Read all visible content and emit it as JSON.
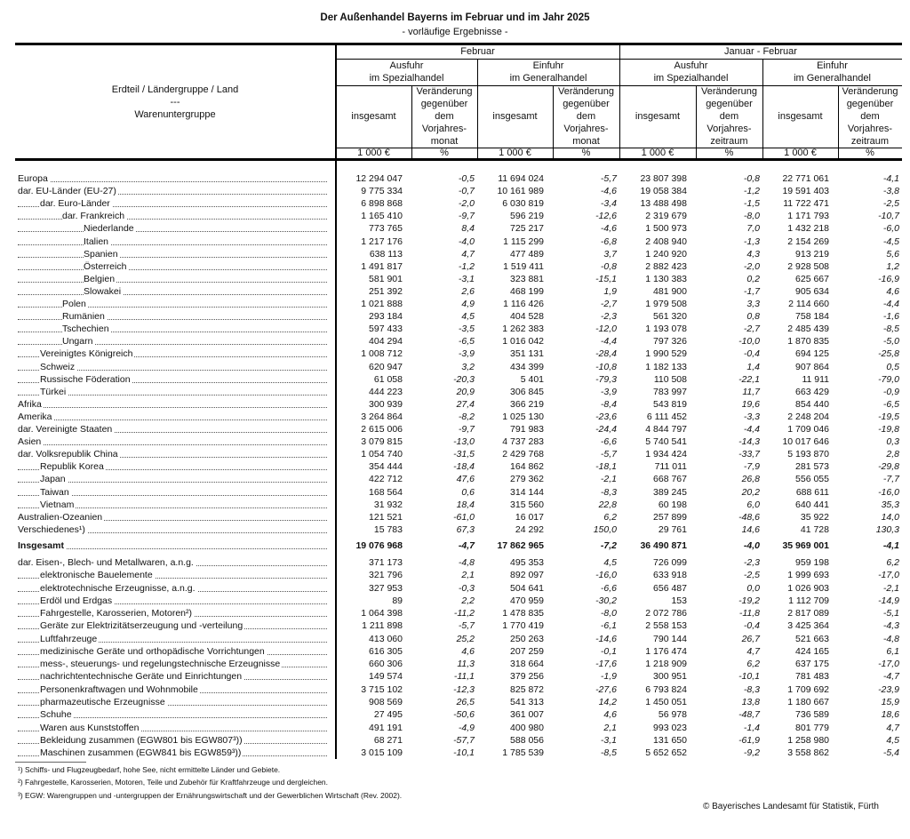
{
  "title": "Der Außenhandel Bayerns im Februar und im Jahr 2025",
  "subtitle": "- vorläufige Ergebnisse -",
  "header": {
    "row_label": [
      "Erdteil / Ländergruppe / Land",
      "---",
      "Warenuntergruppe"
    ],
    "period1": "Februar",
    "period2": "Januar - Februar",
    "ausfuhr": [
      "Ausfuhr",
      "im Spezialhandel"
    ],
    "einfuhr": [
      "Einfuhr",
      "im Generalhandel"
    ],
    "insgesamt": "insgesamt",
    "change_month": [
      "Veränderung",
      "gegenüber",
      "dem",
      "Vorjahres-",
      "monat"
    ],
    "change_period": [
      "Veränderung",
      "gegenüber",
      "dem",
      "Vorjahres-",
      "zeitraum"
    ],
    "unit_value": "1 000 €",
    "unit_pct": "%"
  },
  "regions": [
    {
      "label": "Europa",
      "level": 0,
      "values": [
        "12 294 047",
        "-0,5",
        "11 694 024",
        "-5,7",
        "23 807 398",
        "-0,8",
        "22 771 061",
        "-4,1"
      ]
    },
    {
      "label": "dar. EU-Länder (EU-27)",
      "level": 0,
      "values": [
        "9 775 334",
        "-0,7",
        "10 161 989",
        "-4,6",
        "19 058 384",
        "-1,2",
        "19 591 403",
        "-3,8"
      ]
    },
    {
      "label": "dar. Euro-Länder",
      "level": 1,
      "values": [
        "6 898 868",
        "-2,0",
        "6 030 819",
        "-3,4",
        "13 488 498",
        "-1,5",
        "11 722 471",
        "-2,5"
      ]
    },
    {
      "label": "dar. Frankreich",
      "level": 2,
      "values": [
        "1 165 410",
        "-9,7",
        "596 219",
        "-12,6",
        "2 319 679",
        "-8,0",
        "1 171 793",
        "-10,7"
      ]
    },
    {
      "label": "Niederlande",
      "level": 3,
      "values": [
        "773 765",
        "8,4",
        "725 217",
        "-4,6",
        "1 500 973",
        "7,0",
        "1 432 218",
        "-6,0"
      ]
    },
    {
      "label": "Italien",
      "level": 3,
      "values": [
        "1 217 176",
        "-4,0",
        "1 115 299",
        "-6,8",
        "2 408 940",
        "-1,3",
        "2 154 269",
        "-4,5"
      ]
    },
    {
      "label": "Spanien",
      "level": 3,
      "values": [
        "638 113",
        "4,7",
        "477 489",
        "3,7",
        "1 240 920",
        "4,3",
        "913 219",
        "5,6"
      ]
    },
    {
      "label": "Österreich",
      "level": 3,
      "values": [
        "1 491 817",
        "-1,2",
        "1 519 411",
        "-0,8",
        "2 882 423",
        "-2,0",
        "2 928 508",
        "1,2"
      ]
    },
    {
      "label": "Belgien",
      "level": 3,
      "values": [
        "581 901",
        "-3,1",
        "323 881",
        "-15,1",
        "1 130 383",
        "0,2",
        "625 667",
        "-16,9"
      ]
    },
    {
      "label": "Slowakei",
      "level": 3,
      "values": [
        "251 392",
        "2,6",
        "468 199",
        "1,9",
        "481 900",
        "-1,7",
        "905 634",
        "4,6"
      ]
    },
    {
      "label": "Polen",
      "level": 2,
      "values": [
        "1 021 888",
        "4,9",
        "1 116 426",
        "-2,7",
        "1 979 508",
        "3,3",
        "2 114 660",
        "-4,4"
      ]
    },
    {
      "label": "Rumänien",
      "level": 2,
      "values": [
        "293 184",
        "4,5",
        "404 528",
        "-2,3",
        "561 320",
        "0,8",
        "758 184",
        "-1,6"
      ]
    },
    {
      "label": "Tschechien",
      "level": 2,
      "values": [
        "597 433",
        "-3,5",
        "1 262 383",
        "-12,0",
        "1 193 078",
        "-2,7",
        "2 485 439",
        "-8,5"
      ]
    },
    {
      "label": "Ungarn",
      "level": 2,
      "values": [
        "404 294",
        "-6,5",
        "1 016 042",
        "-4,4",
        "797 326",
        "-10,0",
        "1 870 835",
        "-5,0"
      ]
    },
    {
      "label": "Vereinigtes Königreich",
      "level": 1,
      "values": [
        "1 008 712",
        "-3,9",
        "351 131",
        "-28,4",
        "1 990 529",
        "-0,4",
        "694 125",
        "-25,8"
      ]
    },
    {
      "label": "Schweiz",
      "level": 1,
      "values": [
        "620 947",
        "3,2",
        "434 399",
        "-10,8",
        "1 182 133",
        "1,4",
        "907 864",
        "0,5"
      ]
    },
    {
      "label": "Russische Föderation",
      "level": 1,
      "values": [
        "61 058",
        "-20,3",
        "5 401",
        "-79,3",
        "110 508",
        "-22,1",
        "11 911",
        "-79,0"
      ]
    },
    {
      "label": "Türkei",
      "level": 1,
      "values": [
        "444 223",
        "20,9",
        "306 845",
        "-3,9",
        "783 997",
        "11,7",
        "663 429",
        "-0,9"
      ]
    },
    {
      "label": "Afrika",
      "level": 0,
      "values": [
        "300 939",
        "27,4",
        "366 219",
        "-8,4",
        "543 819",
        "19,6",
        "854 440",
        "-6,5"
      ]
    },
    {
      "label": "Amerika",
      "level": 0,
      "values": [
        "3 264 864",
        "-8,2",
        "1 025 130",
        "-23,6",
        "6 111 452",
        "-3,3",
        "2 248 204",
        "-19,5"
      ]
    },
    {
      "label": "dar. Vereinigte Staaten",
      "level": 0,
      "values": [
        "2 615 006",
        "-9,7",
        "791 983",
        "-24,4",
        "4 844 797",
        "-4,4",
        "1 709 046",
        "-19,8"
      ]
    },
    {
      "label": "Asien",
      "level": 0,
      "values": [
        "3 079 815",
        "-13,0",
        "4 737 283",
        "-6,6",
        "5 740 541",
        "-14,3",
        "10 017 646",
        "0,3"
      ]
    },
    {
      "label": "dar. Volksrepublik China",
      "level": 0,
      "values": [
        "1 054 740",
        "-31,5",
        "2 429 768",
        "-5,7",
        "1 934 424",
        "-33,7",
        "5 193 870",
        "2,8"
      ]
    },
    {
      "label": "Republik Korea",
      "level": 1,
      "values": [
        "354 444",
        "-18,4",
        "164 862",
        "-18,1",
        "711 011",
        "-7,9",
        "281 573",
        "-29,8"
      ]
    },
    {
      "label": "Japan",
      "level": 1,
      "values": [
        "422 712",
        "47,6",
        "279 362",
        "-2,1",
        "668 767",
        "26,8",
        "556 055",
        "-7,7"
      ]
    },
    {
      "label": "Taiwan",
      "level": 1,
      "values": [
        "168 564",
        "0,6",
        "314 144",
        "-8,3",
        "389 245",
        "20,2",
        "688 611",
        "-16,0"
      ]
    },
    {
      "label": "Vietnam",
      "level": 1,
      "values": [
        "31 932",
        "18,4",
        "315 560",
        "22,8",
        "60 198",
        "6,0",
        "640 441",
        "35,3"
      ]
    },
    {
      "label": "Australien-Ozeanien",
      "level": 0,
      "values": [
        "121 521",
        "-61,0",
        "16 017",
        "6,2",
        "257 899",
        "-48,6",
        "35 922",
        "14,0"
      ]
    },
    {
      "label": "Verschiedenes¹)",
      "level": 0,
      "values": [
        "15 783",
        "67,3",
        "24 292",
        "150,0",
        "29 761",
        "14,6",
        "41 728",
        "130,3"
      ]
    }
  ],
  "total": {
    "label": "Insgesamt",
    "values": [
      "19 076 968",
      "-4,7",
      "17 862 965",
      "-7,2",
      "36 490 871",
      "-4,0",
      "35 969 001",
      "-4,1"
    ]
  },
  "goods": [
    {
      "label": "dar. Eisen-, Blech- und Metallwaren, a.n.g.",
      "level": 0,
      "values": [
        "371 173",
        "-4,8",
        "495 353",
        "4,5",
        "726 099",
        "-2,3",
        "959 198",
        "6,2"
      ]
    },
    {
      "label": "elektronische Bauelemente",
      "level": 1,
      "values": [
        "321 796",
        "2,1",
        "892 097",
        "-16,0",
        "633 918",
        "-2,5",
        "1 999 693",
        "-17,0"
      ]
    },
    {
      "label": "elektrotechnische Erzeugnisse, a.n.g.",
      "level": 1,
      "values": [
        "327 953",
        "-0,3",
        "504 641",
        "-6,6",
        "656 487",
        "0,0",
        "1 026 903",
        "-2,1"
      ]
    },
    {
      "label": "Erdöl und Erdgas",
      "level": 1,
      "values": [
        "89",
        "2,2",
        "470 959",
        "-30,2",
        "153",
        "-19,2",
        "1 112 709",
        "-14,9"
      ]
    },
    {
      "label": "Fahrgestelle, Karosserien, Motoren²)",
      "level": 1,
      "values": [
        "1 064 398",
        "-11,2",
        "1 478 835",
        "-8,0",
        "2 072 786",
        "-11,8",
        "2 817 089",
        "-5,1"
      ]
    },
    {
      "label": "Geräte zur Elektrizitätserzeugung und -verteilung",
      "level": 1,
      "values": [
        "1 211 898",
        "-5,7",
        "1 770 419",
        "-6,1",
        "2 558 153",
        "-0,4",
        "3 425 364",
        "-4,3"
      ]
    },
    {
      "label": "Luftfahrzeuge",
      "level": 1,
      "values": [
        "413 060",
        "25,2",
        "250 263",
        "-14,6",
        "790 144",
        "26,7",
        "521 663",
        "-4,8"
      ]
    },
    {
      "label": "medizinische Geräte und orthopädische Vorrichtungen",
      "level": 1,
      "values": [
        "616 305",
        "4,6",
        "207 259",
        "-0,1",
        "1 176 474",
        "4,7",
        "424 165",
        "6,1"
      ]
    },
    {
      "label": "mess-, steuerungs- und regelungstechnische Erzeugnisse",
      "level": 1,
      "values": [
        "660 306",
        "11,3",
        "318 664",
        "-17,6",
        "1 218 909",
        "6,2",
        "637 175",
        "-17,0"
      ]
    },
    {
      "label": "nachrichtentechnische Geräte und Einrichtungen",
      "level": 1,
      "values": [
        "149 574",
        "-11,1",
        "379 256",
        "-1,9",
        "300 951",
        "-10,1",
        "781 483",
        "-4,7"
      ]
    },
    {
      "label": "Personenkraftwagen und Wohnmobile",
      "level": 1,
      "values": [
        "3 715 102",
        "-12,3",
        "825 872",
        "-27,6",
        "6 793 824",
        "-8,3",
        "1 709 692",
        "-23,9"
      ]
    },
    {
      "label": "pharmazeutische Erzeugnisse",
      "level": 1,
      "values": [
        "908 569",
        "26,5",
        "541 313",
        "14,2",
        "1 450 051",
        "13,8",
        "1 180 667",
        "15,9"
      ]
    },
    {
      "label": "Schuhe",
      "level": 1,
      "values": [
        "27 495",
        "-50,6",
        "361 007",
        "4,6",
        "56 978",
        "-48,7",
        "736 589",
        "18,6"
      ]
    },
    {
      "label": "Waren aus Kunststoffen",
      "level": 1,
      "values": [
        "491 191",
        "-4,9",
        "400 980",
        "2,1",
        "993 023",
        "-1,4",
        "801 779",
        "4,7"
      ]
    },
    {
      "label": "Bekleidung zusammen (EGW801 bis EGW807³))",
      "level": 1,
      "values": [
        "68 271",
        "-57,7",
        "588 056",
        "-3,1",
        "131 650",
        "-61,9",
        "1 258 980",
        "4,5"
      ]
    },
    {
      "label": "Maschinen zusammen (EGW841 bis EGW859³))",
      "level": 1,
      "values": [
        "3 015 109",
        "-10,1",
        "1 785 539",
        "-8,5",
        "5 652 652",
        "-9,2",
        "3 558 862",
        "-5,4"
      ]
    }
  ],
  "footnotes": [
    "¹) Schiffs- und Flugzeugbedarf, hohe See, nicht ermittelte Länder und Gebiete.",
    "²) Fahrgestelle, Karosserien, Motoren, Teile und Zubehör für Kraftfahrzeuge und dergleichen.",
    "³) EGW: Warengruppen und -untergruppen der Ernährungswirtschaft und der Gewerblichen Wirtschaft (Rev. 2002)."
  ],
  "copyright": "© Bayerisches Landesamt für Statistik, Fürth"
}
